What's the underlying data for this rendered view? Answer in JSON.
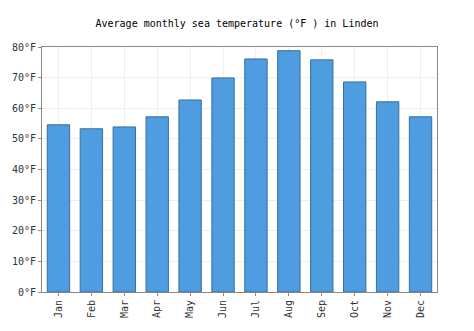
{
  "chart_data": {
    "type": "bar",
    "title": "Average monthly sea temperature (°F ) in Linden",
    "categories": [
      "Jan",
      "Feb",
      "Mar",
      "Apr",
      "May",
      "Jun",
      "Jul",
      "Aug",
      "Sep",
      "Oct",
      "Nov",
      "Dec"
    ],
    "values": [
      54.6,
      53.3,
      53.9,
      57.2,
      62.7,
      69.9,
      76.1,
      78.8,
      75.8,
      68.6,
      62.1,
      57.2
    ],
    "color": "#4d9de0",
    "ylim": [
      0,
      80
    ],
    "yticks": [
      {
        "value": 0,
        "label": "0°F"
      },
      {
        "value": 10,
        "label": "10°F"
      },
      {
        "value": 20,
        "label": "20°F"
      },
      {
        "value": 30,
        "label": "30°F"
      },
      {
        "value": 40,
        "label": "40°F"
      },
      {
        "value": 50,
        "label": "50°F"
      },
      {
        "value": 60,
        "label": "60°F"
      },
      {
        "value": 70,
        "label": "70°F"
      },
      {
        "value": 80,
        "label": "80°F"
      }
    ],
    "grid": true
  }
}
